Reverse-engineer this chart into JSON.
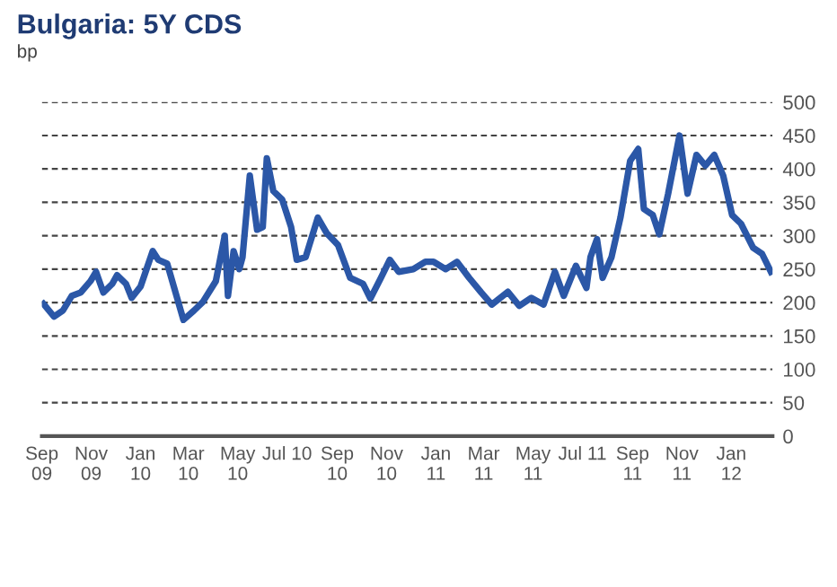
{
  "chart_data": {
    "type": "line",
    "title": "Bulgaria: 5Y CDS",
    "ylabel": "bp",
    "x": [
      "2009-09-03",
      "2009-09-16",
      "2009-09-27",
      "2009-10-08",
      "2009-10-19",
      "2009-10-31",
      "2009-11-07",
      "2009-11-16",
      "2009-11-27",
      "2009-12-03",
      "2009-12-14",
      "2009-12-21",
      "2010-01-01",
      "2010-01-16",
      "2010-01-23",
      "2010-02-03",
      "2010-02-23",
      "2010-03-08",
      "2010-03-19",
      "2010-04-04",
      "2010-04-15",
      "2010-04-19",
      "2010-04-26",
      "2010-05-03",
      "2010-05-07",
      "2010-05-16",
      "2010-05-25",
      "2010-06-01",
      "2010-06-06",
      "2010-06-14",
      "2010-06-25",
      "2010-07-06",
      "2010-07-13",
      "2010-07-24",
      "2010-08-08",
      "2010-08-19",
      "2010-09-02",
      "2010-09-17",
      "2010-10-03",
      "2010-10-12",
      "2010-10-25",
      "2010-11-05",
      "2010-11-16",
      "2010-12-04",
      "2010-12-19",
      "2010-12-29",
      "2011-01-13",
      "2011-01-27",
      "2011-02-11",
      "2011-02-26",
      "2011-03-11",
      "2011-03-31",
      "2011-04-14",
      "2011-04-29",
      "2011-05-14",
      "2011-05-28",
      "2011-06-08",
      "2011-06-23",
      "2011-07-06",
      "2011-07-11",
      "2011-07-19",
      "2011-07-26",
      "2011-08-06",
      "2011-08-17",
      "2011-08-29",
      "2011-09-08",
      "2011-09-15",
      "2011-09-26",
      "2011-10-04",
      "2011-10-15",
      "2011-10-29",
      "2011-11-08",
      "2011-11-19",
      "2011-11-30",
      "2011-12-11",
      "2011-12-22",
      "2012-01-02",
      "2012-01-13",
      "2012-01-28",
      "2012-02-08",
      "2012-02-19"
    ],
    "series": [
      {
        "color": "#2b57a7",
        "values": [
          198,
          179,
          188,
          210,
          215,
          232,
          246,
          215,
          228,
          241,
          228,
          207,
          224,
          277,
          264,
          258,
          174,
          188,
          201,
          232,
          300,
          210,
          277,
          250,
          268,
          390,
          309,
          313,
          416,
          367,
          354,
          313,
          264,
          268,
          327,
          304,
          286,
          237,
          228,
          206,
          237,
          264,
          246,
          250,
          261,
          261,
          250,
          261,
          237,
          215,
          197,
          216,
          195,
          207,
          197,
          246,
          210,
          255,
          222,
          268,
          295,
          237,
          268,
          327,
          412,
          430,
          340,
          331,
          302,
          363,
          450,
          363,
          421,
          405,
          421,
          390,
          331,
          318,
          282,
          273,
          246
        ]
      }
    ],
    "xlim": [
      "2009-09-01",
      "2012-02-21"
    ],
    "xticks": [
      {
        "value": "2009-09-01",
        "label": "Sep\n09"
      },
      {
        "value": "2009-11-01",
        "label": "Nov\n09"
      },
      {
        "value": "2010-01-01",
        "label": "Jan\n10"
      },
      {
        "value": "2010-03-01",
        "label": "Mar\n10"
      },
      {
        "value": "2010-05-01",
        "label": "May\n10"
      },
      {
        "value": "2010-07-01",
        "label": "Jul 10"
      },
      {
        "value": "2010-09-01",
        "label": "Sep\n10"
      },
      {
        "value": "2010-11-01",
        "label": "Nov\n10"
      },
      {
        "value": "2011-01-01",
        "label": "Jan\n11"
      },
      {
        "value": "2011-03-01",
        "label": "Mar\n11"
      },
      {
        "value": "2011-05-01",
        "label": "May\n11"
      },
      {
        "value": "2011-07-01",
        "label": "Jul 11"
      },
      {
        "value": "2011-09-01",
        "label": "Sep\n11"
      },
      {
        "value": "2011-11-01",
        "label": "Nov\n11"
      },
      {
        "value": "2012-01-01",
        "label": "Jan\n12"
      }
    ],
    "ylim": [
      0,
      500
    ],
    "yticks": [
      0,
      50,
      100,
      150,
      200,
      250,
      300,
      350,
      400,
      450,
      500
    ],
    "grid": "y",
    "line_style": "solid"
  }
}
